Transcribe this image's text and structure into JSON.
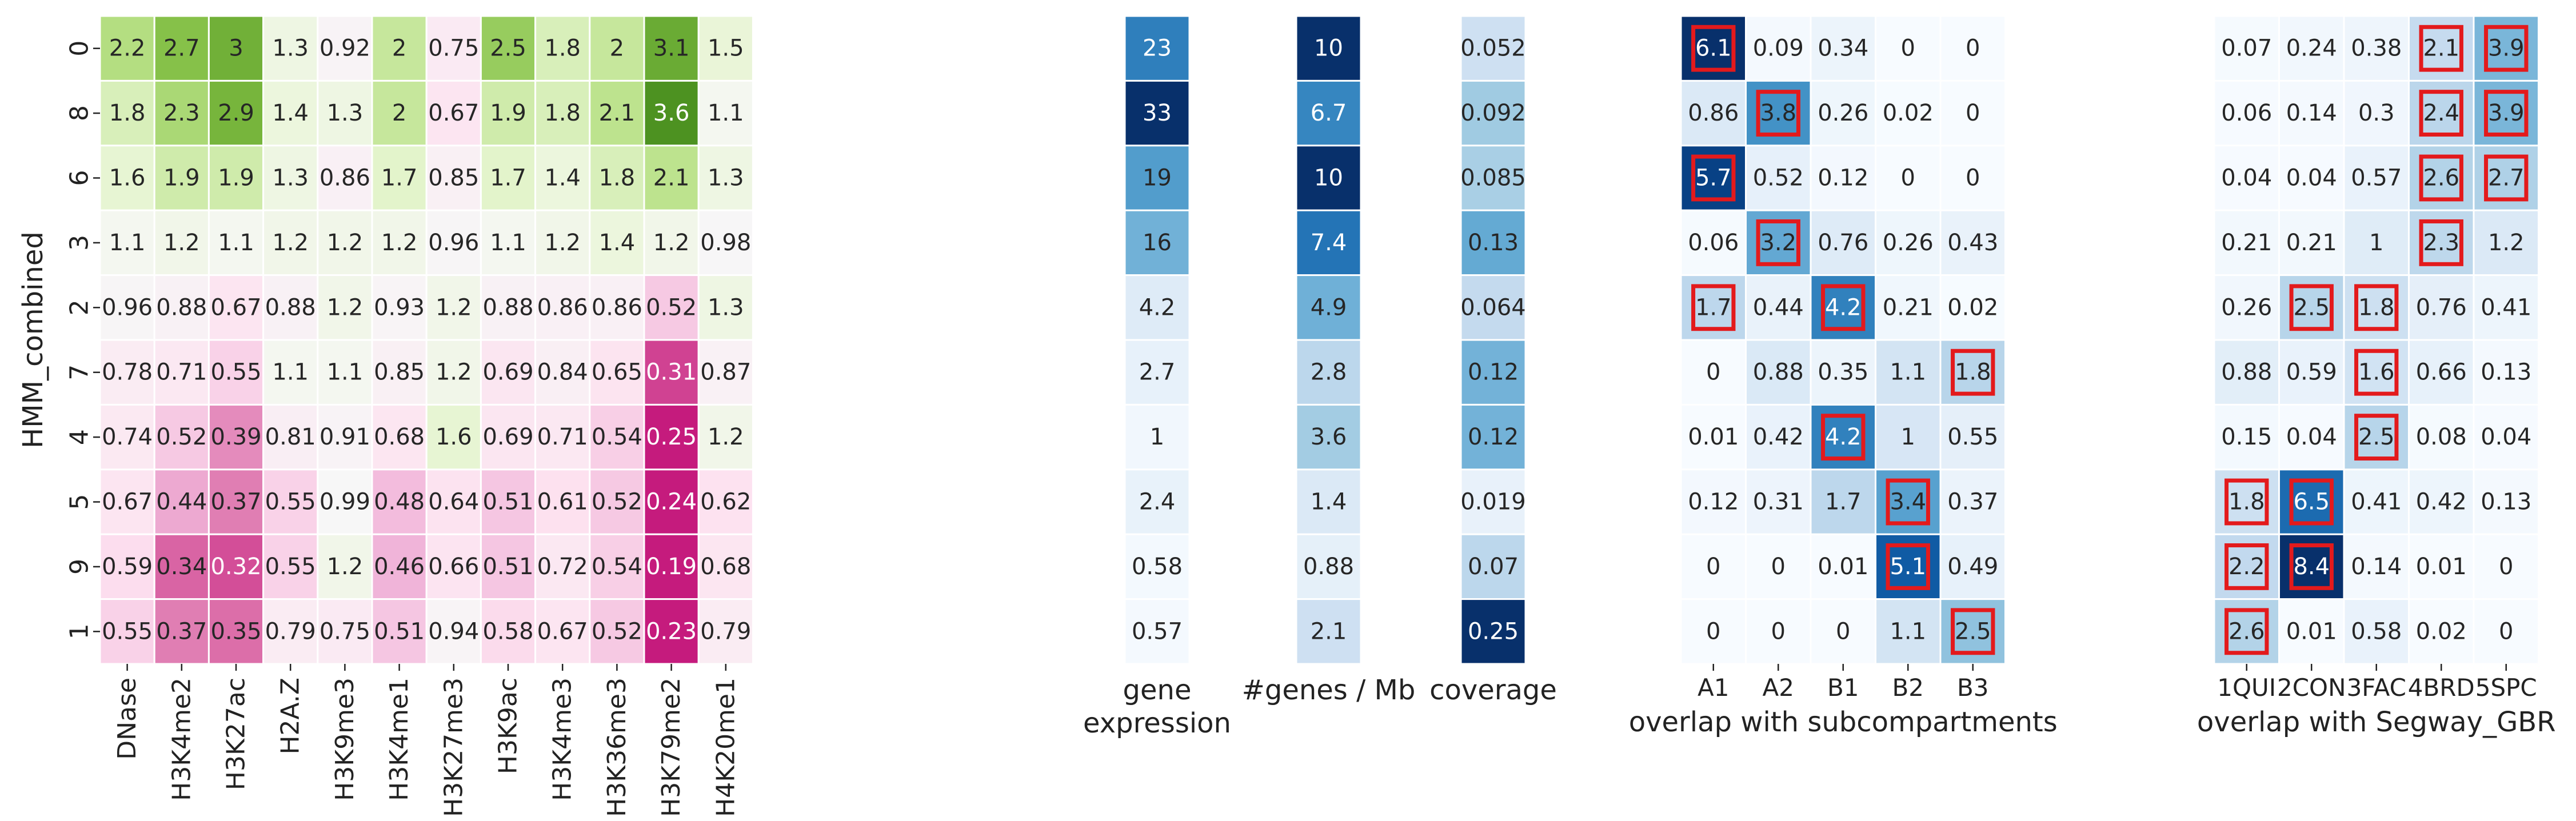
{
  "chart_data": [
    {
      "type": "heatmap",
      "name": "histone-marks",
      "ylabel": "HMM_combined",
      "rows": [
        "0",
        "8",
        "6",
        "3",
        "2",
        "7",
        "4",
        "5",
        "9",
        "1"
      ],
      "columns": [
        "DNase",
        "H3K4me2",
        "H3K27ac",
        "H2A.Z",
        "H3K9me3",
        "H3K4me1",
        "H3K27me3",
        "H3K9ac",
        "H3K4me3",
        "H3K36me3",
        "H3K79me2",
        "H4K20me1"
      ],
      "values": [
        [
          "2.2",
          "2.7",
          "3",
          "1.3",
          "0.92",
          "2",
          "0.75",
          "2.5",
          "1.8",
          "2",
          "3.1",
          "1.5"
        ],
        [
          "1.8",
          "2.3",
          "2.9",
          "1.4",
          "1.3",
          "2",
          "0.67",
          "1.9",
          "1.8",
          "2.1",
          "3.6",
          "1.1"
        ],
        [
          "1.6",
          "1.9",
          "1.9",
          "1.3",
          "0.86",
          "1.7",
          "0.85",
          "1.7",
          "1.4",
          "1.8",
          "2.1",
          "1.3"
        ],
        [
          "1.1",
          "1.2",
          "1.1",
          "1.2",
          "1.2",
          "1.2",
          "0.96",
          "1.1",
          "1.2",
          "1.4",
          "1.2",
          "0.98"
        ],
        [
          "0.96",
          "0.88",
          "0.67",
          "0.88",
          "1.2",
          "0.93",
          "1.2",
          "0.88",
          "0.86",
          "0.86",
          "0.52",
          "1.3"
        ],
        [
          "0.78",
          "0.71",
          "0.55",
          "1.1",
          "1.1",
          "0.85",
          "1.2",
          "0.69",
          "0.84",
          "0.65",
          "0.31",
          "0.87"
        ],
        [
          "0.74",
          "0.52",
          "0.39",
          "0.81",
          "0.91",
          "0.68",
          "1.6",
          "0.69",
          "0.71",
          "0.54",
          "0.25",
          "1.2"
        ],
        [
          "0.67",
          "0.44",
          "0.37",
          "0.55",
          "0.99",
          "0.48",
          "0.64",
          "0.51",
          "0.61",
          "0.52",
          "0.24",
          "0.62"
        ],
        [
          "0.59",
          "0.34",
          "0.32",
          "0.55",
          "1.2",
          "0.46",
          "0.66",
          "0.51",
          "0.72",
          "0.54",
          "0.19",
          "0.68"
        ],
        [
          "0.55",
          "0.37",
          "0.35",
          "0.79",
          "0.75",
          "0.51",
          "0.94",
          "0.58",
          "0.67",
          "0.52",
          "0.23",
          "0.79"
        ]
      ],
      "colormap": "PiYG-diverging",
      "center": 1,
      "colors": {
        "pink": "#c51b7d",
        "white": "#f7f7f7",
        "green": "#4d9221"
      }
    },
    {
      "type": "heatmap",
      "name": "gene-expression",
      "xlabel": "gene\nexpression",
      "values": [
        "23",
        "33",
        "19",
        "16",
        "4.2",
        "2.7",
        "1",
        "2.4",
        "0.58",
        "0.57"
      ],
      "colormap": "Blues"
    },
    {
      "type": "heatmap",
      "name": "genes-per-mb",
      "xlabel": "#genes / Mb",
      "values": [
        "10",
        "6.7",
        "10",
        "7.4",
        "4.9",
        "2.8",
        "3.6",
        "1.4",
        "0.88",
        "2.1"
      ],
      "colormap": "Blues"
    },
    {
      "type": "heatmap",
      "name": "coverage",
      "xlabel": "coverage",
      "values": [
        "0.052",
        "0.092",
        "0.085",
        "0.13",
        "0.064",
        "0.12",
        "0.12",
        "0.019",
        "0.07",
        "0.25"
      ],
      "colormap": "Blues"
    },
    {
      "type": "heatmap",
      "name": "subcompartments",
      "xlabel": "overlap with subcompartments",
      "columns": [
        "A1",
        "A2",
        "B1",
        "B2",
        "B3"
      ],
      "values": [
        [
          "6.1",
          "0.09",
          "0.34",
          "0",
          "0"
        ],
        [
          "0.86",
          "3.8",
          "0.26",
          "0.02",
          "0"
        ],
        [
          "5.7",
          "0.52",
          "0.12",
          "0",
          "0"
        ],
        [
          "0.06",
          "3.2",
          "0.76",
          "0.26",
          "0.43"
        ],
        [
          "1.7",
          "0.44",
          "4.2",
          "0.21",
          "0.02"
        ],
        [
          "0",
          "0.88",
          "0.35",
          "1.1",
          "1.8"
        ],
        [
          "0.01",
          "0.42",
          "4.2",
          "1",
          "0.55"
        ],
        [
          "0.12",
          "0.31",
          "1.7",
          "3.4",
          "0.37"
        ],
        [
          "0",
          "0",
          "0.01",
          "5.1",
          "0.49"
        ],
        [
          "0",
          "0",
          "0",
          "1.1",
          "2.5"
        ]
      ],
      "highlighted": [
        [
          0,
          0
        ],
        [
          1,
          1
        ],
        [
          2,
          0
        ],
        [
          3,
          1
        ],
        [
          4,
          0
        ],
        [
          4,
          2
        ],
        [
          5,
          4
        ],
        [
          6,
          2
        ],
        [
          7,
          3
        ],
        [
          8,
          3
        ],
        [
          9,
          4
        ]
      ],
      "colormap": "Blues",
      "highlight_color": "#e31a1c"
    },
    {
      "type": "heatmap",
      "name": "segway",
      "xlabel": "overlap with Segway_GBR",
      "columns": [
        "1QUI",
        "2CON",
        "3FAC",
        "4BRD",
        "5SPC"
      ],
      "values": [
        [
          "0.07",
          "0.24",
          "0.38",
          "2.1",
          "3.9"
        ],
        [
          "0.06",
          "0.14",
          "0.3",
          "2.4",
          "3.9"
        ],
        [
          "0.04",
          "0.04",
          "0.57",
          "2.6",
          "2.7"
        ],
        [
          "0.21",
          "0.21",
          "1",
          "2.3",
          "1.2"
        ],
        [
          "0.26",
          "2.5",
          "1.8",
          "0.76",
          "0.41"
        ],
        [
          "0.88",
          "0.59",
          "1.6",
          "0.66",
          "0.13"
        ],
        [
          "0.15",
          "0.04",
          "2.5",
          "0.08",
          "0.04"
        ],
        [
          "1.8",
          "6.5",
          "0.41",
          "0.42",
          "0.13"
        ],
        [
          "2.2",
          "8.4",
          "0.14",
          "0.01",
          "0"
        ],
        [
          "2.6",
          "0.01",
          "0.58",
          "0.02",
          "0"
        ]
      ],
      "highlighted": [
        [
          0,
          3
        ],
        [
          0,
          4
        ],
        [
          1,
          3
        ],
        [
          1,
          4
        ],
        [
          2,
          3
        ],
        [
          2,
          4
        ],
        [
          3,
          3
        ],
        [
          4,
          1
        ],
        [
          4,
          2
        ],
        [
          5,
          2
        ],
        [
          6,
          2
        ],
        [
          7,
          0
        ],
        [
          7,
          1
        ],
        [
          8,
          0
        ],
        [
          8,
          1
        ],
        [
          9,
          0
        ]
      ],
      "colormap": "Blues",
      "highlight_color": "#e31a1c"
    }
  ]
}
